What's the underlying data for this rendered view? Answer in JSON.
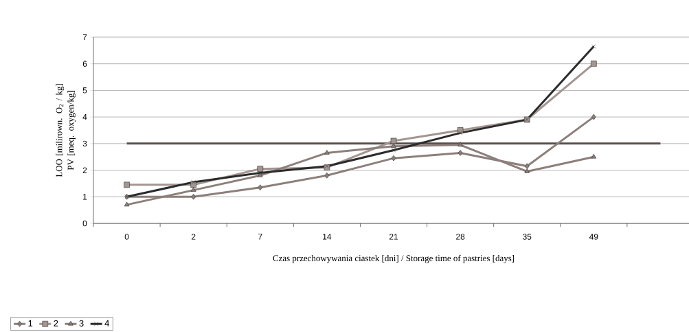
{
  "chart_data": {
    "type": "line",
    "xlabel": "Czas przechowywania ciastek [dni] / Storage time of pastries [days]",
    "ylabel": "LOO [milirown. O$_{2}$ / kg] PV [meq. oxygen/kg]",
    "categories": [
      "0",
      "2",
      "7",
      "14",
      "21",
      "28",
      "35",
      "49",
      null
    ],
    "series": [
      {
        "name": "1",
        "color": "#8c7f7b",
        "marker": "diamond",
        "values": [
          1.0,
          1.0,
          1.35,
          1.8,
          2.45,
          2.65,
          2.15,
          4.0,
          null
        ]
      },
      {
        "name": "2",
        "color": "#a39692",
        "marker": "square",
        "values": [
          1.45,
          1.45,
          2.05,
          2.1,
          3.1,
          3.5,
          3.9,
          6.0,
          null
        ]
      },
      {
        "name": "3",
        "color": "#8c7f7b",
        "marker": "triangle",
        "values": [
          0.7,
          1.25,
          1.8,
          2.65,
          2.9,
          2.95,
          1.95,
          2.5,
          null
        ]
      },
      {
        "name": "4",
        "color": "#2b2b2b",
        "marker": "cross",
        "values": [
          1.0,
          1.55,
          1.9,
          2.15,
          2.75,
          3.4,
          3.9,
          6.65,
          null
        ]
      }
    ],
    "ref_lines": [
      {
        "axis": "y",
        "value": 3,
        "color": "#5a514e"
      }
    ],
    "ylim": [
      0,
      7
    ],
    "yticks": [
      0,
      1,
      2,
      3,
      4,
      5,
      6,
      7
    ],
    "grid": "y",
    "legend": "bottom left",
    "line_style": "solid"
  }
}
